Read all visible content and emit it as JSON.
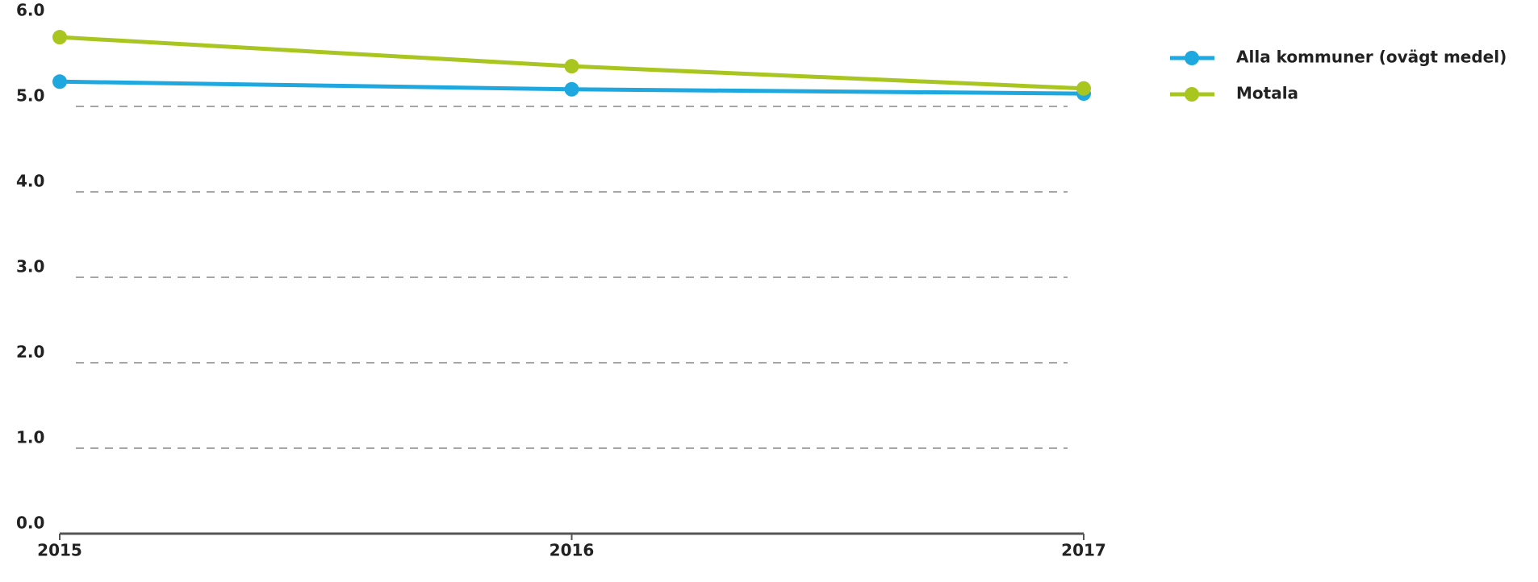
{
  "chart_data": {
    "type": "line",
    "categories": [
      "2015",
      "2016",
      "2017"
    ],
    "series": [
      {
        "name": "Alla kommuner (ovägt medel)",
        "color": "#1fa8df",
        "values": [
          5.29,
          5.2,
          5.15
        ]
      },
      {
        "name": "Motala",
        "color": "#a8c520",
        "values": [
          5.81,
          5.47,
          5.21
        ]
      }
    ],
    "ylim": [
      0,
      6
    ],
    "yticks": [
      {
        "value": 0,
        "label": "0.0"
      },
      {
        "value": 1,
        "label": "1.0"
      },
      {
        "value": 2,
        "label": "2.0"
      },
      {
        "value": 3,
        "label": "3.0"
      },
      {
        "value": 4,
        "label": "4.0"
      },
      {
        "value": 5,
        "label": "5.0"
      },
      {
        "value": 6,
        "label": "6.0"
      }
    ],
    "grid": true,
    "legend": "right"
  }
}
